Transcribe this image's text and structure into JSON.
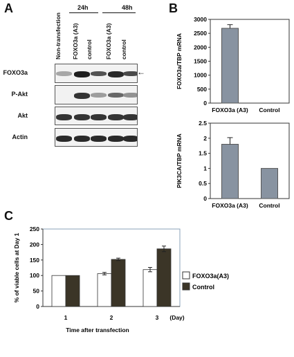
{
  "panels": {
    "A": "A",
    "B": "B",
    "C": "C"
  },
  "panel_a": {
    "time_points": [
      "24h",
      "48h"
    ],
    "lanes": [
      "Non-transfection",
      "FOXO3a (A3)",
      "control",
      "FOXO3a (A3)",
      "control"
    ],
    "blots": [
      {
        "label": "FOXO3a",
        "intensities": [
          0.3,
          0.95,
          0.7,
          0.9,
          0.75
        ]
      },
      {
        "label": "P-Akt",
        "intensities": [
          0.0,
          0.85,
          0.35,
          0.6,
          0.4
        ]
      },
      {
        "label": "Akt",
        "intensities": [
          0.85,
          0.85,
          0.85,
          0.85,
          0.85
        ]
      },
      {
        "label": "Actin",
        "intensities": [
          0.9,
          0.9,
          0.9,
          0.9,
          0.9
        ]
      }
    ],
    "arrow": "←"
  },
  "chart_data": [
    {
      "type": "bar",
      "categories": [
        "FOXO3a (A3)",
        "Control"
      ],
      "series": [
        {
          "values": [
            2680,
            0
          ],
          "errors": [
            130,
            0
          ]
        }
      ],
      "ylabel": "FOXO3a/TBP mRNA",
      "ylim": [
        0,
        3000
      ],
      "yticks": [
        "0",
        "500",
        "1000",
        "1500",
        "2000",
        "2500",
        "3000"
      ],
      "grid": false
    },
    {
      "type": "bar",
      "categories": [
        "FOXO3a (A3)",
        "Control"
      ],
      "series": [
        {
          "values": [
            1.8,
            1.0
          ],
          "errors": [
            0.22,
            0
          ]
        }
      ],
      "ylabel": "PIK3CA/TBP mRNA",
      "ylim": [
        0,
        2.5
      ],
      "yticks": [
        "0",
        "0.5",
        "1",
        "1.5",
        "2",
        "2.5"
      ],
      "grid": false
    },
    {
      "type": "bar",
      "categories": [
        "1",
        "2",
        "3"
      ],
      "x_unit": "(Day)",
      "series": [
        {
          "name": "FOXO3a(A3)",
          "values": [
            100,
            106,
            119
          ],
          "errors": [
            0,
            4,
            7
          ],
          "color": "#ffffff"
        },
        {
          "name": "Control",
          "values": [
            100,
            152,
            186
          ],
          "errors": [
            0,
            4,
            9
          ],
          "color": "#3b3527"
        }
      ],
      "xlabel": "Time after transfection",
      "ylabel": "% of viable cells at Day 1",
      "ylim": [
        0,
        250
      ],
      "yticks": [
        "0",
        "50",
        "100",
        "150",
        "200",
        "250"
      ],
      "legend": "right",
      "grid": false
    }
  ],
  "colors": {
    "bar_b": "#8893a1",
    "control": "#3b3527",
    "foxo": "#ffffff"
  }
}
